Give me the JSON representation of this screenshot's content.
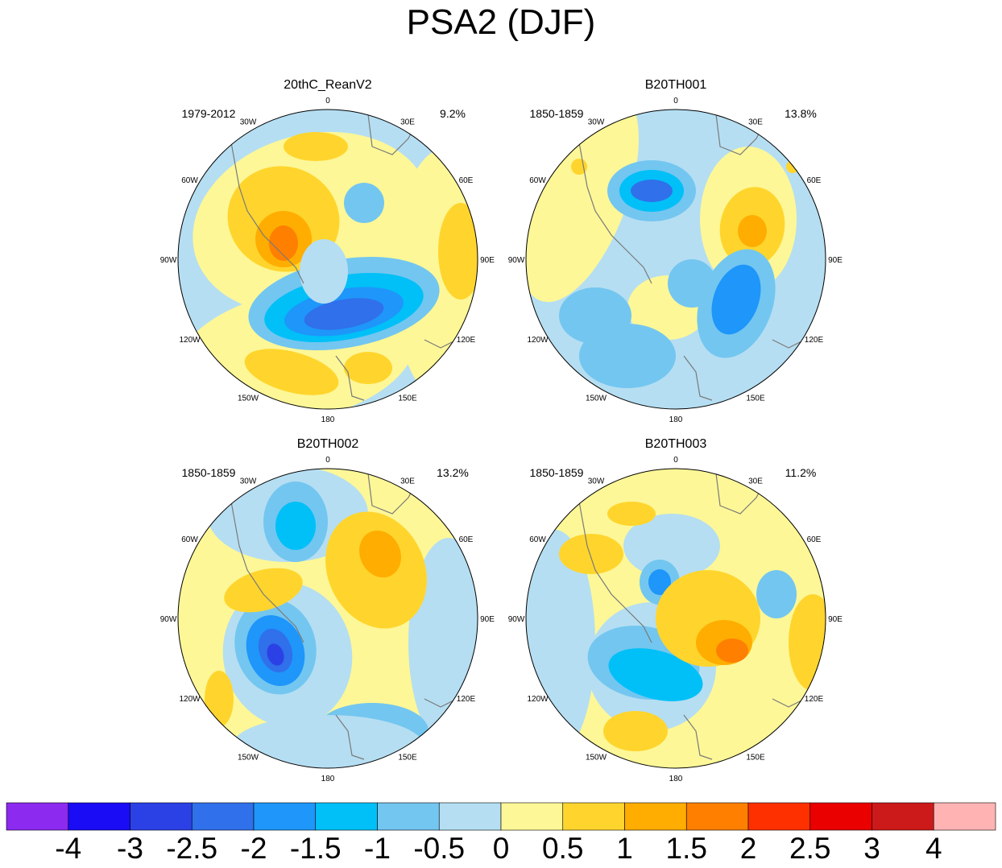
{
  "title": "PSA2 (DJF)",
  "panels": [
    {
      "name": "20thC_ReanV2",
      "period": "1979-2012",
      "pct": "9.2%"
    },
    {
      "name": "B20TH001",
      "period": "1850-1859",
      "pct": "13.8%"
    },
    {
      "name": "B20TH002",
      "period": "1850-1859",
      "pct": "13.2%"
    },
    {
      "name": "B20TH003",
      "period": "1850-1859",
      "pct": "11.2%"
    }
  ],
  "lon_labels": [
    "0",
    "30E",
    "60E",
    "90E",
    "120E",
    "150E",
    "180",
    "150W",
    "120W",
    "90W",
    "60W",
    "30W"
  ],
  "colorbar": {
    "colors": [
      "#8c2af0",
      "#1a0cf5",
      "#2b41e6",
      "#3070ea",
      "#1e96fa",
      "#00c0f7",
      "#73c6f0",
      "#b5def2",
      "#fdf797",
      "#ffd52d",
      "#ffad00",
      "#ff7f00",
      "#ff3000",
      "#eb0000",
      "#cc1a1a",
      "#ffb3b3"
    ],
    "labels": [
      "-4",
      "-3",
      "-2.5",
      "-2",
      "-1.5",
      "-1",
      "-0.5",
      "0",
      "0.5",
      "1",
      "1.5",
      "2",
      "2.5",
      "3",
      "4"
    ]
  }
}
